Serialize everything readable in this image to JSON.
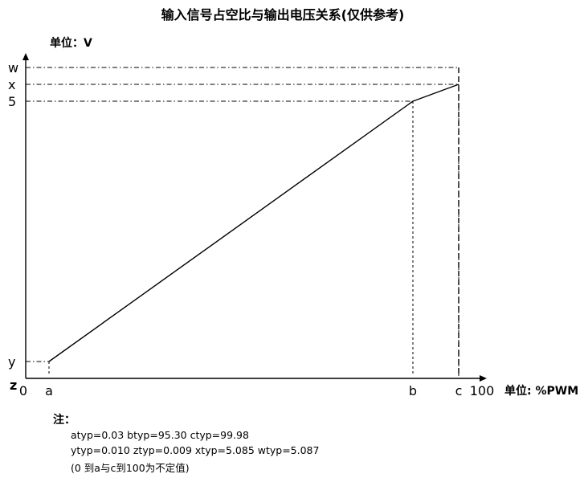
{
  "chart_data": {
    "type": "line",
    "title": "输入信号占空比与输出电压关系(仅供参考)",
    "ylabel": "单位：V",
    "xlabel": "单位: %PWM",
    "x_ticks": [
      "0",
      "a",
      "b",
      "c",
      "100"
    ],
    "y_ticks": [
      "z",
      "y",
      "5",
      "x",
      "w"
    ],
    "series": [
      {
        "x": [
          0.03,
          95.3
        ],
        "y": [
          0.01,
          5.0
        ]
      },
      {
        "x": [
          95.3,
          99.98
        ],
        "y": [
          5.0,
          5.085
        ]
      }
    ],
    "guide_points": [
      {
        "x_label": "a",
        "y_label": "y",
        "x": 0.03,
        "y": 0.01
      },
      {
        "x_label": "b",
        "y_label": "5",
        "x": 95.3,
        "y": 5.0
      },
      {
        "x_label": "c",
        "y_label": "x",
        "x": 99.98,
        "y": 5.085
      },
      {
        "x_label": "c",
        "y_label": "w",
        "x": 99.98,
        "y": 5.087
      }
    ],
    "grid": false,
    "legend": "none"
  },
  "notes": {
    "label": "注：",
    "line1": "atyp=0.03 btyp=95.30 ctyp=99.98",
    "line2": "ytyp=0.010 ztyp=0.009 xtyp=5.085 wtyp=5.087",
    "line3": "(0 到a与c到100为不定值)"
  },
  "colors": {
    "ink": "#000000"
  }
}
